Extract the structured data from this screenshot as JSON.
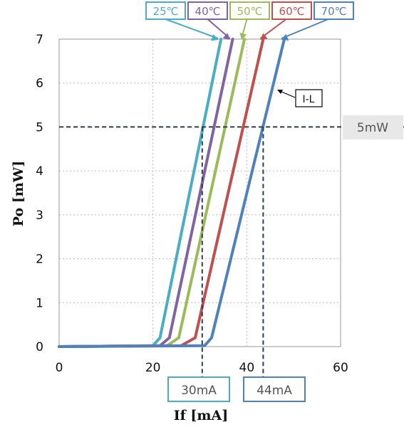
{
  "chart_data": {
    "type": "line",
    "xlabel": "If [mA]",
    "ylabel": "Po [mW]",
    "xlim": [
      0,
      60
    ],
    "ylim": [
      0,
      7
    ],
    "x_ticks": [
      "0",
      "20",
      "40",
      "60"
    ],
    "y_ticks": [
      "0",
      "1",
      "2",
      "3",
      "4",
      "5",
      "6",
      "7"
    ],
    "grid": true,
    "series": [
      {
        "name": "25℃",
        "color": "#4BACC6",
        "x": [
          0,
          20,
          21.5,
          34.5
        ],
        "y": [
          0,
          0.02,
          0.2,
          7
        ]
      },
      {
        "name": "40℃",
        "color": "#8064A2",
        "x": [
          0,
          21.5,
          23.5,
          37
        ],
        "y": [
          0,
          0.02,
          0.2,
          7
        ]
      },
      {
        "name": "50℃",
        "color": "#9BBB59",
        "x": [
          0,
          23,
          25.5,
          39.5
        ],
        "y": [
          0,
          0.02,
          0.2,
          7
        ]
      },
      {
        "name": "60℃",
        "color": "#C0504D",
        "x": [
          0,
          26,
          29,
          43.5
        ],
        "y": [
          0,
          0.02,
          0.2,
          7
        ]
      },
      {
        "name": "70℃",
        "color": "#4F81BD",
        "x": [
          0,
          31,
          32.5,
          48
        ],
        "y": [
          0,
          0.02,
          0.2,
          7
        ]
      }
    ],
    "annotations": {
      "power_line": {
        "y": 5,
        "label": "5mW"
      },
      "current_markers": [
        {
          "x": 30.5,
          "label": "30mA"
        },
        {
          "x": 43.5,
          "label": "44mA"
        }
      ],
      "curve_label": "I-L"
    }
  }
}
